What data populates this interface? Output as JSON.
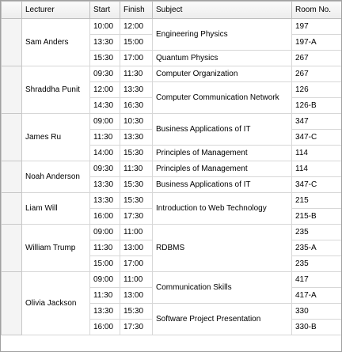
{
  "headers": {
    "lecturer": "Lecturer",
    "start": "Start",
    "finish": "Finish",
    "subject": "Subject",
    "room": "Room No."
  },
  "groups": [
    {
      "lecturer": "Sam Anders",
      "rows": [
        {
          "start": "10:00",
          "finish": "12:00",
          "room": "197"
        },
        {
          "start": "13:30",
          "finish": "15:00",
          "room": "197-A"
        },
        {
          "start": "15:30",
          "finish": "17:00",
          "room": "267"
        }
      ],
      "subjects": [
        {
          "text": "Engineering Physics",
          "span": 2
        },
        {
          "text": "Quantum Physics",
          "span": 1
        }
      ]
    },
    {
      "lecturer": "Shraddha Punit",
      "rows": [
        {
          "start": "09:30",
          "finish": "11:30",
          "room": "267"
        },
        {
          "start": "12:00",
          "finish": "13:30",
          "room": "126"
        },
        {
          "start": "14:30",
          "finish": "16:30",
          "room": "126-B"
        }
      ],
      "subjects": [
        {
          "text": "Computer Organization",
          "span": 1
        },
        {
          "text": "Computer Communication Network",
          "span": 2
        }
      ]
    },
    {
      "lecturer": "James Ru",
      "rows": [
        {
          "start": "09:00",
          "finish": "10:30",
          "room": "347"
        },
        {
          "start": "11:30",
          "finish": "13:30",
          "room": "347-C"
        },
        {
          "start": "14:00",
          "finish": "15:30",
          "room": "114"
        }
      ],
      "subjects": [
        {
          "text": "Business Applications of IT",
          "span": 2
        },
        {
          "text": "Principles of Management",
          "span": 1
        }
      ]
    },
    {
      "lecturer": "Noah Anderson",
      "rows": [
        {
          "start": "09:30",
          "finish": "11:30",
          "room": "114"
        },
        {
          "start": "13:30",
          "finish": "15:30",
          "room": "347-C"
        }
      ],
      "subjects": [
        {
          "text": "Principles of Management",
          "span": 1
        },
        {
          "text": "Business Applications of IT",
          "span": 1
        }
      ]
    },
    {
      "lecturer": "Liam Will",
      "rows": [
        {
          "start": "13:30",
          "finish": "15:30",
          "room": "215"
        },
        {
          "start": "16:00",
          "finish": "17:30",
          "room": "215-B"
        }
      ],
      "subjects": [
        {
          "text": "Introduction to Web Technology",
          "span": 2
        }
      ]
    },
    {
      "lecturer": "William Trump",
      "rows": [
        {
          "start": "09:00",
          "finish": "11:00",
          "room": "235"
        },
        {
          "start": "11:30",
          "finish": "13:00",
          "room": "235-A"
        },
        {
          "start": "15:00",
          "finish": "17:00",
          "room": "235"
        }
      ],
      "subjects": [
        {
          "text": "RDBMS",
          "span": 3
        }
      ]
    },
    {
      "lecturer": "Olivia Jackson",
      "rows": [
        {
          "start": "09:00",
          "finish": "11:00",
          "room": "417"
        },
        {
          "start": "11:30",
          "finish": "13:00",
          "room": "417-A"
        },
        {
          "start": "13:30",
          "finish": "15:30",
          "room": "330"
        },
        {
          "start": "16:00",
          "finish": "17:30",
          "room": "330-B"
        }
      ],
      "subjects": [
        {
          "text": "Communication Skills",
          "span": 2
        },
        {
          "text": "Software Project Presentation",
          "span": 2
        }
      ]
    }
  ]
}
